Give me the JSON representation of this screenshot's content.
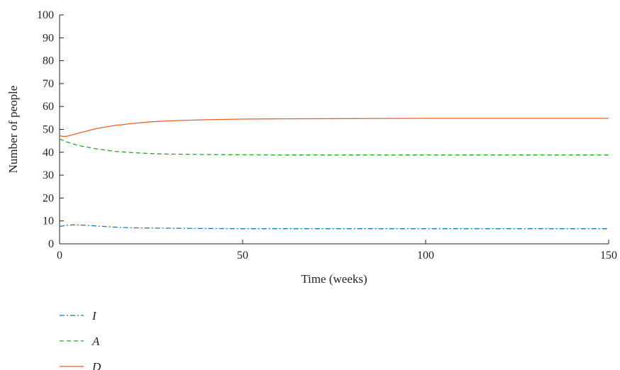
{
  "chart_data": {
    "type": "line",
    "xlabel": "Time (weeks)",
    "ylabel": "Number of people",
    "xlim": [
      0,
      150
    ],
    "ylim": [
      0,
      100
    ],
    "xticks": [
      0,
      50,
      100,
      150
    ],
    "yticks": [
      0,
      10,
      20,
      30,
      40,
      50,
      60,
      70,
      80,
      90,
      100
    ],
    "grid": false,
    "legend_position": "bottom-left",
    "series": [
      {
        "name": "I",
        "color": "#1f77b4",
        "style": "dashdot",
        "x": [
          0,
          2,
          4,
          6,
          10,
          15,
          20,
          30,
          40,
          50,
          60,
          80,
          100,
          125,
          150
        ],
        "y": [
          7.6,
          8.1,
          8.3,
          8.2,
          7.8,
          7.3,
          7.0,
          6.8,
          6.7,
          6.6,
          6.6,
          6.6,
          6.6,
          6.6,
          6.6
        ]
      },
      {
        "name": "A",
        "color": "#2ca02c",
        "style": "dashed",
        "x": [
          0,
          2,
          5,
          10,
          15,
          20,
          25,
          30,
          40,
          50,
          60,
          80,
          100,
          125,
          150
        ],
        "y": [
          45.8,
          44.5,
          43.0,
          41.5,
          40.4,
          39.8,
          39.4,
          39.2,
          39.0,
          38.9,
          38.8,
          38.8,
          38.8,
          38.8,
          38.8
        ]
      },
      {
        "name": "D",
        "color": "#e8622a",
        "style": "solid",
        "x": [
          0,
          1,
          2,
          3,
          5,
          8,
          10,
          15,
          20,
          25,
          30,
          40,
          50,
          60,
          80,
          100,
          125,
          150
        ],
        "y": [
          47.2,
          46.9,
          47.0,
          47.4,
          48.3,
          49.5,
          50.3,
          51.7,
          52.6,
          53.3,
          53.7,
          54.2,
          54.5,
          54.6,
          54.7,
          54.8,
          54.8,
          54.8
        ]
      }
    ]
  }
}
